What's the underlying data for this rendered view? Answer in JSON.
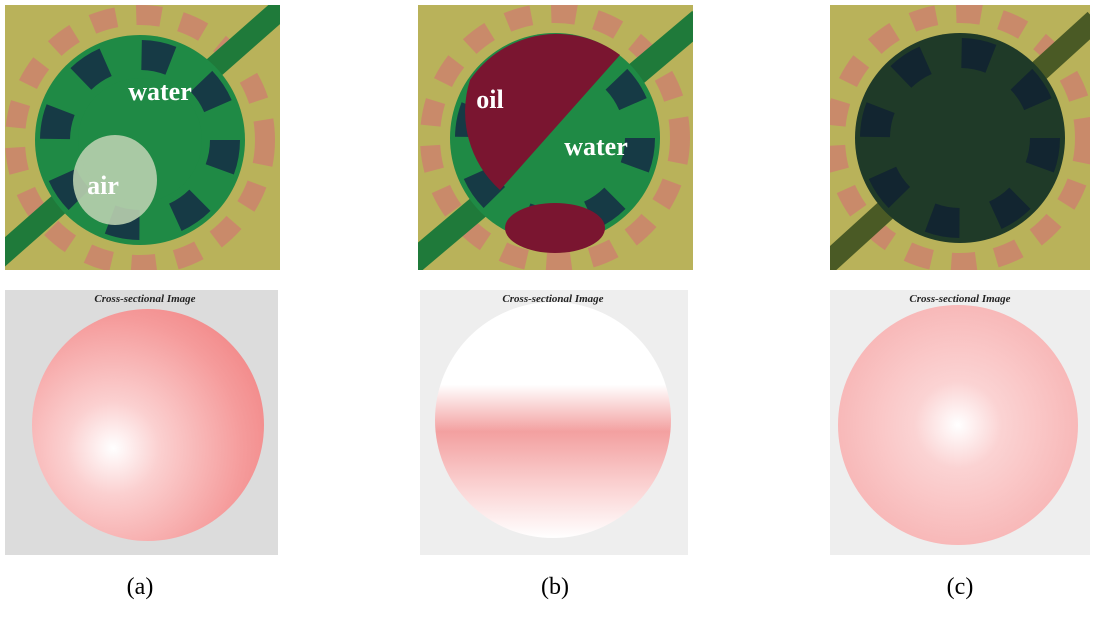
{
  "panels": [
    {
      "photo_labels": [
        "water",
        "air"
      ],
      "image_title": "Cross-sectional Image",
      "caption": "(a)"
    },
    {
      "photo_labels": [
        "oil",
        "water"
      ],
      "image_title": "Cross-sectional Image",
      "caption": "(b)"
    },
    {
      "photo_labels": [],
      "image_title": "Cross-sectional Image",
      "caption": "(c)"
    }
  ]
}
